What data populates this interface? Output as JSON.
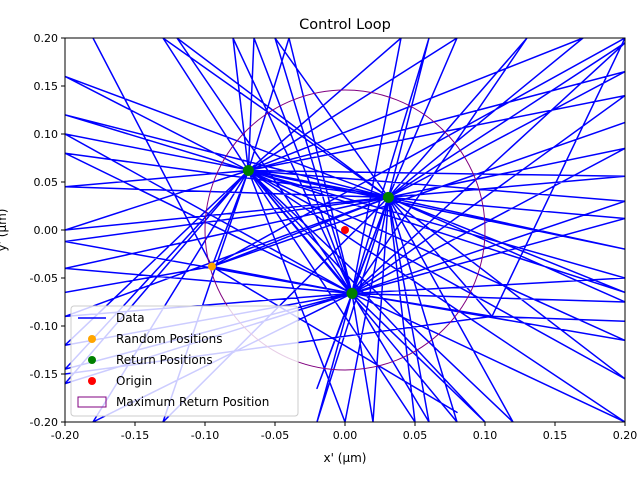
{
  "chart_data": {
    "type": "line",
    "title": "Control Loop",
    "xlabel": "x' (µm)",
    "ylabel": "y' (µm)",
    "xlim": [
      -0.2,
      0.2
    ],
    "ylim": [
      -0.2,
      0.2
    ],
    "xticks": [
      "-0.20",
      "-0.15",
      "-0.10",
      "-0.05",
      "0.00",
      "0.05",
      "0.10",
      "0.15",
      "0.20"
    ],
    "yticks": [
      "-0.20",
      "-0.15",
      "-0.10",
      "-0.05",
      "0.00",
      "0.05",
      "0.10",
      "0.15",
      "0.20"
    ],
    "grid": false,
    "legend_position": "lower-left",
    "legend": [
      {
        "label": "Data",
        "kind": "line",
        "color": "#0000ff"
      },
      {
        "label": "Random Positions",
        "kind": "marker",
        "color": "#ffa500"
      },
      {
        "label": "Return Positions",
        "kind": "marker",
        "color": "#008000"
      },
      {
        "label": "Origin",
        "kind": "marker",
        "color": "#ff0000"
      },
      {
        "label": "Maximum Return Position",
        "kind": "patch",
        "color": "#800080"
      }
    ],
    "colors": {
      "data": "#0000ff",
      "random": "#ffa500",
      "return": "#008000",
      "origin": "#ff0000",
      "circle": "#800080"
    },
    "max_return_radius": 0.1,
    "origin": [
      0.0,
      0.0
    ],
    "random_positions": [
      [
        -0.095,
        -0.038
      ]
    ],
    "return_positions": [
      [
        -0.069,
        0.062
      ],
      [
        0.031,
        0.034
      ],
      [
        0.005,
        -0.066
      ]
    ],
    "data_path": [
      [
        -0.069,
        0.062
      ],
      [
        -0.13,
        0.2
      ],
      [
        0.031,
        0.034
      ],
      [
        -0.2,
        -0.012
      ],
      [
        0.005,
        -0.066
      ],
      [
        -0.04,
        0.2
      ],
      [
        -0.069,
        0.062
      ],
      [
        0.2,
        0.056
      ],
      [
        0.031,
        0.034
      ],
      [
        -0.05,
        0.2
      ],
      [
        0.005,
        -0.066
      ],
      [
        0.2,
        0.03
      ],
      [
        -0.069,
        0.062
      ],
      [
        -0.2,
        0.0
      ],
      [
        0.031,
        0.034
      ],
      [
        0.13,
        0.2
      ],
      [
        0.005,
        -0.066
      ],
      [
        -0.2,
        -0.12
      ],
      [
        -0.069,
        0.062
      ],
      [
        0.08,
        0.2
      ],
      [
        0.031,
        0.034
      ],
      [
        0.2,
        0.012
      ],
      [
        0.005,
        -0.066
      ],
      [
        -0.065,
        0.2
      ],
      [
        -0.069,
        0.062
      ],
      [
        0.2,
        -0.02
      ],
      [
        0.031,
        0.034
      ],
      [
        -0.2,
        0.08
      ],
      [
        0.005,
        -0.066
      ],
      [
        0.1,
        -0.2
      ],
      [
        -0.069,
        0.062
      ],
      [
        -0.2,
        0.045
      ],
      [
        0.031,
        0.034
      ],
      [
        0.06,
        -0.2
      ],
      [
        0.005,
        -0.066
      ],
      [
        0.2,
        -0.2
      ],
      [
        -0.069,
        0.062
      ],
      [
        0.05,
        -0.2
      ],
      [
        0.031,
        0.034
      ],
      [
        0.2,
        -0.075
      ],
      [
        0.005,
        -0.066
      ],
      [
        -0.2,
        -0.16
      ],
      [
        -0.069,
        0.062
      ],
      [
        0.2,
        0.165
      ],
      [
        0.031,
        0.034
      ],
      [
        -0.02,
        -0.2
      ],
      [
        0.005,
        -0.066
      ],
      [
        0.2,
        -0.115
      ],
      [
        -0.069,
        0.062
      ],
      [
        -0.2,
        0.12
      ],
      [
        0.031,
        0.034
      ],
      [
        0.105,
        -0.09
      ],
      [
        0.005,
        -0.066
      ],
      [
        -0.095,
        -0.038
      ],
      [
        -0.069,
        0.062
      ],
      [
        0.17,
        0.2
      ],
      [
        0.031,
        0.034
      ],
      [
        -0.2,
        -0.04
      ],
      [
        0.005,
        -0.066
      ],
      [
        0.04,
        0.2
      ],
      [
        -0.069,
        0.062
      ],
      [
        -0.2,
        0.16
      ],
      [
        0.031,
        0.034
      ],
      [
        0.2,
        0.085
      ],
      [
        0.005,
        -0.066
      ],
      [
        -0.2,
        -0.145
      ],
      [
        -0.069,
        0.062
      ],
      [
        0.0,
        -0.2
      ],
      [
        0.031,
        0.034
      ],
      [
        -0.12,
        0.2
      ],
      [
        0.005,
        -0.066
      ],
      [
        0.2,
        0.14
      ],
      [
        -0.069,
        0.062
      ],
      [
        0.08,
        -0.2
      ],
      [
        0.031,
        0.034
      ],
      [
        -0.2,
        0.1
      ],
      [
        0.005,
        -0.066
      ],
      [
        0.2,
        -0.05
      ],
      [
        -0.069,
        0.062
      ],
      [
        -0.13,
        -0.2
      ],
      [
        0.031,
        0.034
      ],
      [
        0.2,
        0.195
      ],
      [
        0.005,
        -0.066
      ],
      [
        -0.08,
        0.2
      ],
      [
        -0.069,
        0.062
      ],
      [
        0.2,
        -0.155
      ],
      [
        0.031,
        0.034
      ],
      [
        0.06,
        0.2
      ],
      [
        0.005,
        -0.066
      ],
      [
        -0.18,
        -0.2
      ],
      [
        -0.069,
        0.062
      ],
      [
        0.12,
        -0.2
      ],
      [
        0.031,
        0.034
      ],
      [
        0.02,
        -0.2
      ],
      [
        0.005,
        -0.066
      ],
      [
        0.105,
        -0.09
      ],
      [
        0.2,
        -0.095
      ],
      [
        0.105,
        -0.09
      ],
      [
        -0.2,
        -0.15
      ],
      [
        0.105,
        -0.09
      ],
      [
        0.2,
        0.2
      ],
      [
        -0.095,
        -0.038
      ],
      [
        -0.18,
        0.2
      ],
      [
        -0.095,
        -0.038
      ],
      [
        0.2,
        0.112
      ],
      [
        -0.095,
        -0.038
      ],
      [
        -0.2,
        -0.065
      ],
      [
        -0.095,
        -0.038
      ],
      [
        0.08,
        -0.19
      ],
      [
        -0.095,
        -0.038
      ],
      [
        0.031,
        0.034
      ],
      [
        -0.02,
        -0.165
      ],
      [
        0.005,
        -0.066
      ],
      [
        -0.02,
        -0.165
      ],
      [
        0.031,
        0.034
      ],
      [
        -0.02,
        -0.165
      ],
      [
        0.005,
        -0.066
      ],
      [
        -0.2,
        -0.09
      ],
      [
        0.031,
        0.034
      ],
      [
        0.2,
        -0.065
      ],
      [
        -0.069,
        0.062
      ],
      [
        0.005,
        -0.066
      ],
      [
        0.031,
        0.034
      ],
      [
        -0.069,
        0.062
      ],
      [
        0.005,
        -0.066
      ]
    ]
  }
}
